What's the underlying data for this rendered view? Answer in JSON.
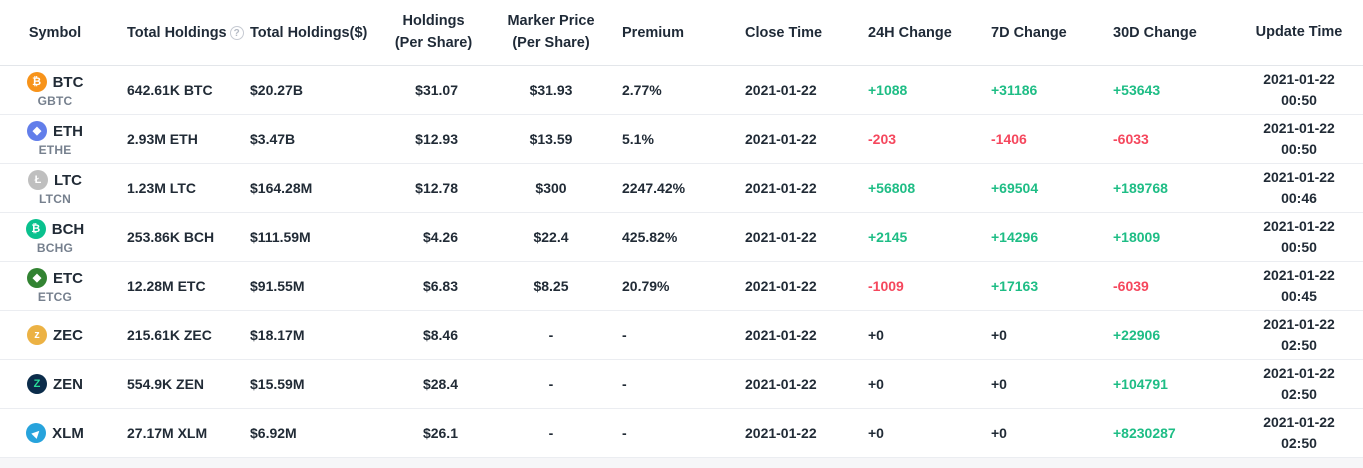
{
  "colors": {
    "positive": "#1ebd85",
    "negative": "#f5475d",
    "text_dark": "#212b36",
    "text_gray": "#76808e"
  },
  "table": {
    "columns": [
      {
        "label": "Symbol"
      },
      {
        "label": "Total Holdings",
        "info_icon": "?"
      },
      {
        "label": "Total Holdings($)"
      },
      {
        "label": "Holdings",
        "label2": "(Per Share)"
      },
      {
        "label": "Marker Price",
        "label2": "(Per Share)"
      },
      {
        "label": "Premium"
      },
      {
        "label": "Close Time"
      },
      {
        "label": "24H Change"
      },
      {
        "label": "7D Change"
      },
      {
        "label": "30D Change"
      },
      {
        "label": "Update Time"
      }
    ],
    "rows": [
      {
        "symbol": "BTC",
        "trust": "GBTC",
        "icon_glyph": "₿",
        "icon_style": "background:#f7931a",
        "total_holdings": "642.61K BTC",
        "total_holdings_usd": "$20.27B",
        "holdings_per_share": "$31.07",
        "marker_price": "$31.93",
        "premium": "2.77%",
        "close_time": "2021-01-22",
        "change_24h": "+1088",
        "change_24h_trend": "up",
        "change_7d": "+31186",
        "change_7d_trend": "up",
        "change_30d": "+53643",
        "change_30d_trend": "up",
        "update_date": "2021-01-22",
        "update_clock": "00:50"
      },
      {
        "symbol": "ETH",
        "trust": "ETHE",
        "icon_glyph": "◆",
        "icon_style": "background:#627eea",
        "total_holdings": "2.93M ETH",
        "total_holdings_usd": "$3.47B",
        "holdings_per_share": "$12.93",
        "marker_price": "$13.59",
        "premium": "5.1%",
        "close_time": "2021-01-22",
        "change_24h": "-203",
        "change_24h_trend": "down",
        "change_7d": "-1406",
        "change_7d_trend": "down",
        "change_30d": "-6033",
        "change_30d_trend": "down",
        "update_date": "2021-01-22",
        "update_clock": "00:50"
      },
      {
        "symbol": "LTC",
        "trust": "LTCN",
        "icon_glyph": "Ł",
        "icon_style": "background:#bfbfbf",
        "total_holdings": "1.23M LTC",
        "total_holdings_usd": "$164.28M",
        "holdings_per_share": "$12.78",
        "marker_price": "$300",
        "premium": "2247.42%",
        "close_time": "2021-01-22",
        "change_24h": "+56808",
        "change_24h_trend": "up",
        "change_7d": "+69504",
        "change_7d_trend": "up",
        "change_30d": "+189768",
        "change_30d_trend": "up",
        "update_date": "2021-01-22",
        "update_clock": "00:46"
      },
      {
        "symbol": "BCH",
        "trust": "BCHG",
        "icon_glyph": "₿",
        "icon_style": "background:#0ac18e",
        "total_holdings": "253.86K BCH",
        "total_holdings_usd": "$111.59M",
        "holdings_per_share": "$4.26",
        "marker_price": "$22.4",
        "premium": "425.82%",
        "close_time": "2021-01-22",
        "change_24h": "+2145",
        "change_24h_trend": "up",
        "change_7d": "+14296",
        "change_7d_trend": "up",
        "change_30d": "+18009",
        "change_30d_trend": "up",
        "update_date": "2021-01-22",
        "update_clock": "00:50"
      },
      {
        "symbol": "ETC",
        "trust": "ETCG",
        "icon_glyph": "◆",
        "icon_style": "background:#328332",
        "total_holdings": "12.28M ETC",
        "total_holdings_usd": "$91.55M",
        "holdings_per_share": "$6.83",
        "marker_price": "$8.25",
        "premium": "20.79%",
        "close_time": "2021-01-22",
        "change_24h": "-1009",
        "change_24h_trend": "down",
        "change_7d": "+17163",
        "change_7d_trend": "up",
        "change_30d": "-6039",
        "change_30d_trend": "down",
        "update_date": "2021-01-22",
        "update_clock": "00:45"
      },
      {
        "symbol": "ZEC",
        "trust": "",
        "icon_glyph": "z",
        "icon_style": "background:#ecb244",
        "total_holdings": "215.61K ZEC",
        "total_holdings_usd": "$18.17M",
        "holdings_per_share": "$8.46",
        "marker_price": "-",
        "premium": "-",
        "close_time": "2021-01-22",
        "change_24h": "+0",
        "change_24h_trend": "flat",
        "change_7d": "+0",
        "change_7d_trend": "flat",
        "change_30d": "+22906",
        "change_30d_trend": "up",
        "update_date": "2021-01-22",
        "update_clock": "02:50"
      },
      {
        "symbol": "ZEN",
        "trust": "",
        "icon_glyph": "Z",
        "icon_style": "background:#0b2c4a",
        "glyph_style": "color:#2adf9a",
        "total_holdings": "554.9K ZEN",
        "total_holdings_usd": "$15.59M",
        "holdings_per_share": "$28.4",
        "marker_price": "-",
        "premium": "-",
        "close_time": "2021-01-22",
        "change_24h": "+0",
        "change_24h_trend": "flat",
        "change_7d": "+0",
        "change_7d_trend": "flat",
        "change_30d": "+104791",
        "change_30d_trend": "up",
        "update_date": "2021-01-22",
        "update_clock": "02:50"
      },
      {
        "symbol": "XLM",
        "trust": "",
        "icon_glyph": "▶",
        "icon_style": "background:#27a3dc",
        "glyph_style": "transform:rotate(-45deg);font-size:9px",
        "total_holdings": "27.17M XLM",
        "total_holdings_usd": "$6.92M",
        "holdings_per_share": "$26.1",
        "marker_price": "-",
        "premium": "-",
        "close_time": "2021-01-22",
        "change_24h": "+0",
        "change_24h_trend": "flat",
        "change_7d": "+0",
        "change_7d_trend": "flat",
        "change_30d": "+8230287",
        "change_30d_trend": "up",
        "update_date": "2021-01-22",
        "update_clock": "02:50"
      }
    ]
  }
}
